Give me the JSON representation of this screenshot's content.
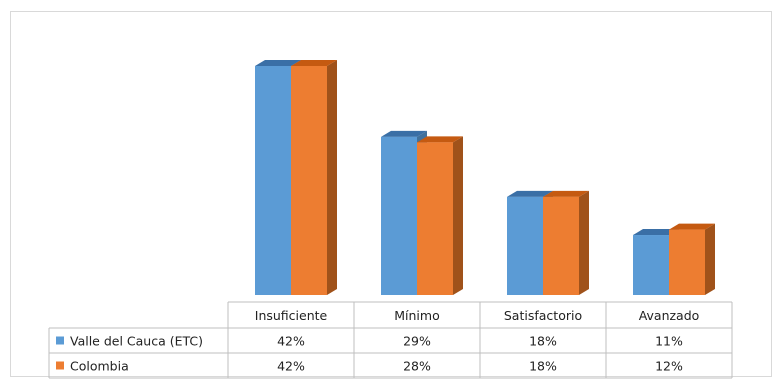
{
  "chart_data": {
    "type": "bar",
    "style": "3d-clustered-column-with-data-table",
    "categories": [
      "Insuficiente",
      "Mínimo",
      "Satisfactorio",
      "Avanzado"
    ],
    "series": [
      {
        "name": "Valle del Cauca (ETC)",
        "values": [
          42,
          29,
          18,
          11
        ],
        "labels": [
          "42%",
          "29%",
          "18%",
          "11%"
        ],
        "color": "#5b9bd5",
        "side_color": "#41719c",
        "top_color": "#3a6fa6"
      },
      {
        "name": "Colombia",
        "values": [
          42,
          28,
          18,
          12
        ],
        "labels": [
          "42%",
          "28%",
          "18%",
          "12%"
        ],
        "color": "#ed7d31",
        "side_color": "#a0521a",
        "top_color": "#c55a11"
      }
    ],
    "ylim": [
      0,
      42
    ],
    "legend": "in-data-table",
    "grid": false
  }
}
